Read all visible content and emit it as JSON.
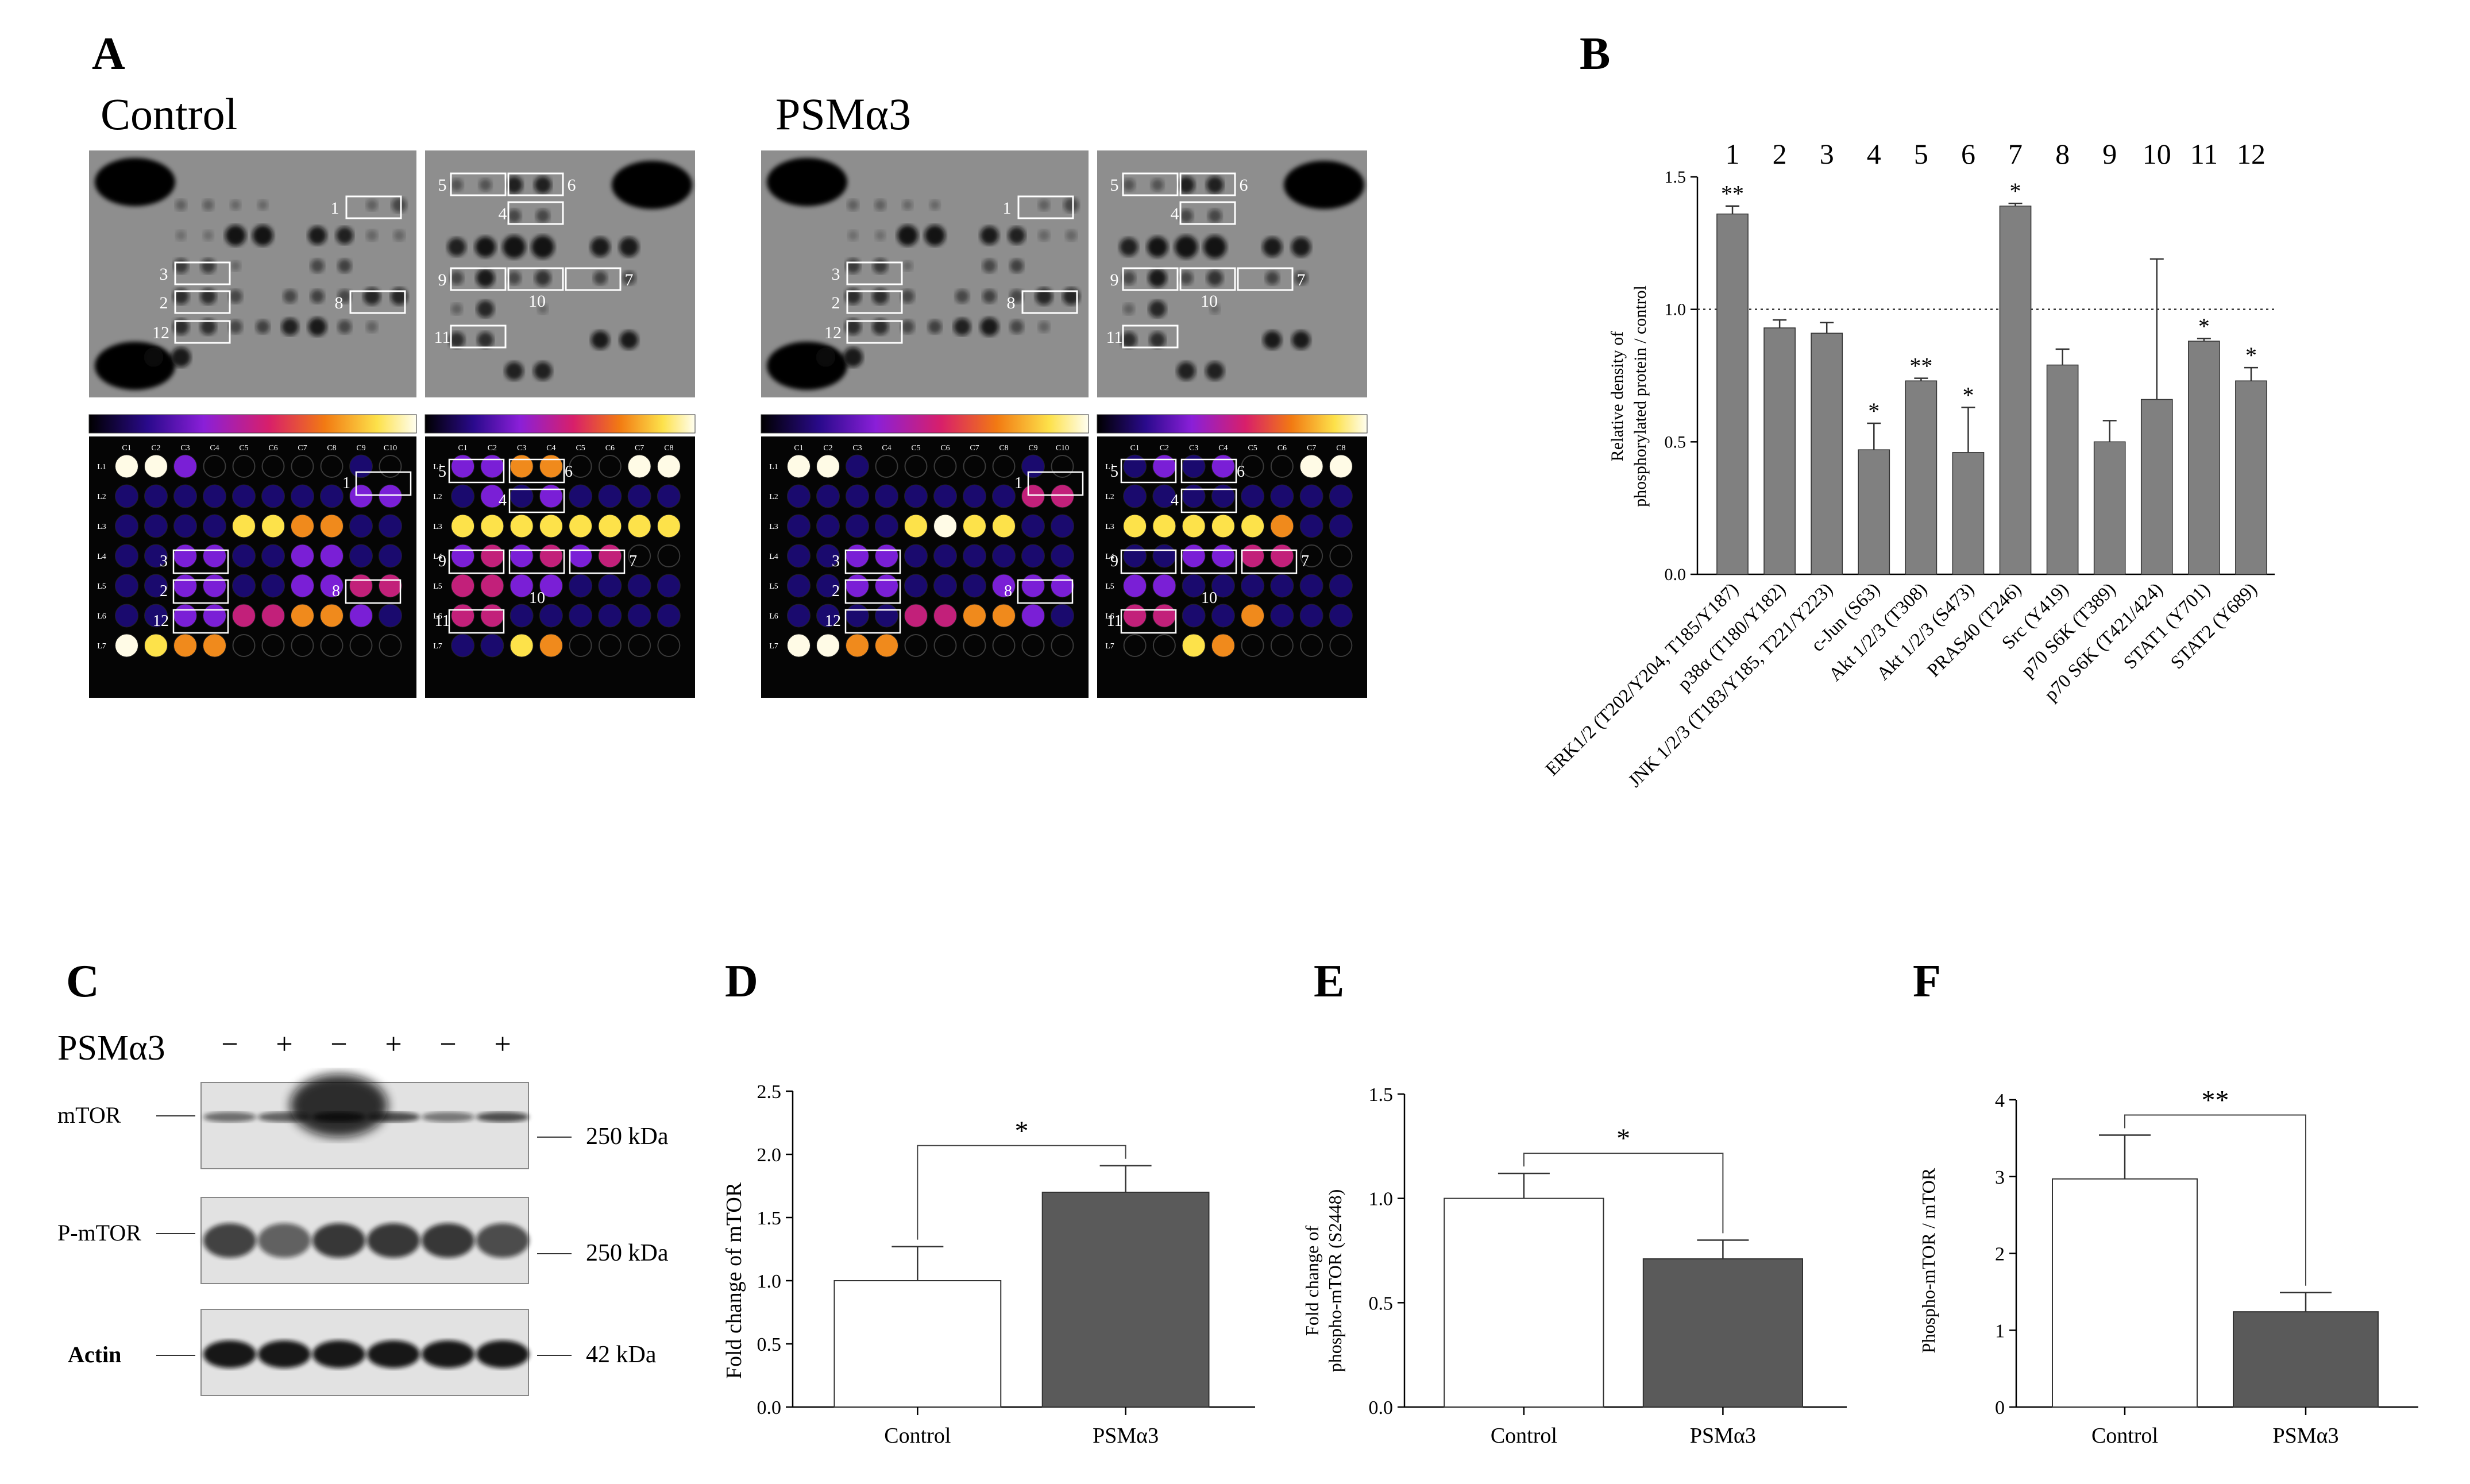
{
  "colors": {
    "bar_gray": "#808080",
    "bar_dark": "#5a5a5a",
    "membrane": "#8e8e8e",
    "heat_bg": "#050505",
    "heat_low": "#1a0a6e",
    "heat_purple": "#7a1fd6",
    "heat_magenta": "#c2207a",
    "heat_orange": "#f08a1c",
    "heat_yellow": "#fde24a",
    "heat_white": "#fffbe6"
  },
  "panels": {
    "A": {
      "letter": "A",
      "control_title": "Control",
      "psm_title": "PSMα3",
      "spot_labels_left": [
        "1",
        "2",
        "3",
        "8",
        "12"
      ],
      "spot_labels_right": [
        "4",
        "5",
        "6",
        "7",
        "9",
        "10",
        "11"
      ],
      "heat_col_left": [
        "C1",
        "C2",
        "C3",
        "C4",
        "C5",
        "C6",
        "C7",
        "C8",
        "C9",
        "C10"
      ],
      "heat_col_right": [
        "C1",
        "C2",
        "C3",
        "C4",
        "C5",
        "C6",
        "C7",
        "C8"
      ],
      "heat_rows": [
        "L1",
        "L2",
        "L3",
        "L4",
        "L5",
        "L6",
        "L7"
      ]
    },
    "B": {
      "letter": "B"
    },
    "C": {
      "letter": "C",
      "treatment_label": "PSMα3",
      "signs": [
        "−",
        "+",
        "−",
        "+",
        "−",
        "+"
      ],
      "blots": [
        {
          "name": "mTOR",
          "size": "250 kDa"
        },
        {
          "name": "P-mTOR",
          "size": "250 kDa"
        },
        {
          "name": "Actin",
          "size": "42 kDa"
        }
      ]
    },
    "D": {
      "letter": "D"
    },
    "E": {
      "letter": "E"
    },
    "F": {
      "letter": "F"
    }
  },
  "chart_data": [
    {
      "panel": "B",
      "type": "bar",
      "title": "",
      "ylabel_line1": "Relative density of",
      "ylabel_line2": "phosphorylated protein / control",
      "ylim": [
        0,
        1.5
      ],
      "yticks": [
        "0.0",
        "0.5",
        "1.0",
        "1.5"
      ],
      "reference_line": 1.0,
      "numbers": [
        "1",
        "2",
        "3",
        "4",
        "5",
        "6",
        "7",
        "8",
        "9",
        "10",
        "11",
        "12"
      ],
      "categories": [
        "ERK1/2 (T202/Y204, T185/Y187)",
        "p38α (T180/Y182)",
        "JNK 1/2/3 (T183/Y185, T221/Y223)",
        "c-Jun (S63)",
        "Akt 1/2/3 (T308)",
        "Akt 1/2/3 (S473)",
        "PRAS40 (T246)",
        "Src (Y419)",
        "p70 S6K (T389)",
        "p70 S6K (T421/424)",
        "STAT1 (Y701)",
        "STAT2 (Y689)"
      ],
      "values": [
        1.36,
        0.93,
        0.91,
        0.47,
        0.73,
        0.46,
        1.39,
        0.79,
        0.5,
        0.66,
        0.88,
        0.73
      ],
      "errors": [
        0.03,
        0.03,
        0.04,
        0.1,
        0.01,
        0.17,
        0.01,
        0.06,
        0.08,
        0.53,
        0.01,
        0.05
      ],
      "significance": [
        "**",
        "",
        "",
        "*",
        "**",
        "*",
        "*",
        "",
        "",
        "",
        "*",
        "*"
      ]
    },
    {
      "panel": "D",
      "type": "bar",
      "ylabel": "Fold change of mTOR",
      "categories": [
        "Control",
        "PSMα3"
      ],
      "values": [
        1.0,
        1.7
      ],
      "errors": [
        0.27,
        0.21
      ],
      "ylim": [
        0,
        2.5
      ],
      "yticks": [
        "0.0",
        "0.5",
        "1.0",
        "1.5",
        "2.0",
        "2.5"
      ],
      "significance": "*"
    },
    {
      "panel": "E",
      "type": "bar",
      "ylabel_line1": "Fold change of",
      "ylabel_line2": "phospho-mTOR (S2448)",
      "categories": [
        "Control",
        "PSMα3"
      ],
      "values": [
        1.0,
        0.71
      ],
      "errors": [
        0.12,
        0.09
      ],
      "ylim": [
        0,
        1.5
      ],
      "yticks": [
        "0.0",
        "0.5",
        "1.0",
        "1.5"
      ],
      "significance": "*"
    },
    {
      "panel": "F",
      "type": "bar",
      "ylabel": "Phospho-mTOR / mTOR",
      "categories": [
        "Control",
        "PSMα3"
      ],
      "values": [
        2.97,
        1.24
      ],
      "errors": [
        0.57,
        0.25
      ],
      "ylim": [
        0,
        4
      ],
      "yticks": [
        "0",
        "1",
        "2",
        "3",
        "4"
      ],
      "significance": "**"
    }
  ]
}
